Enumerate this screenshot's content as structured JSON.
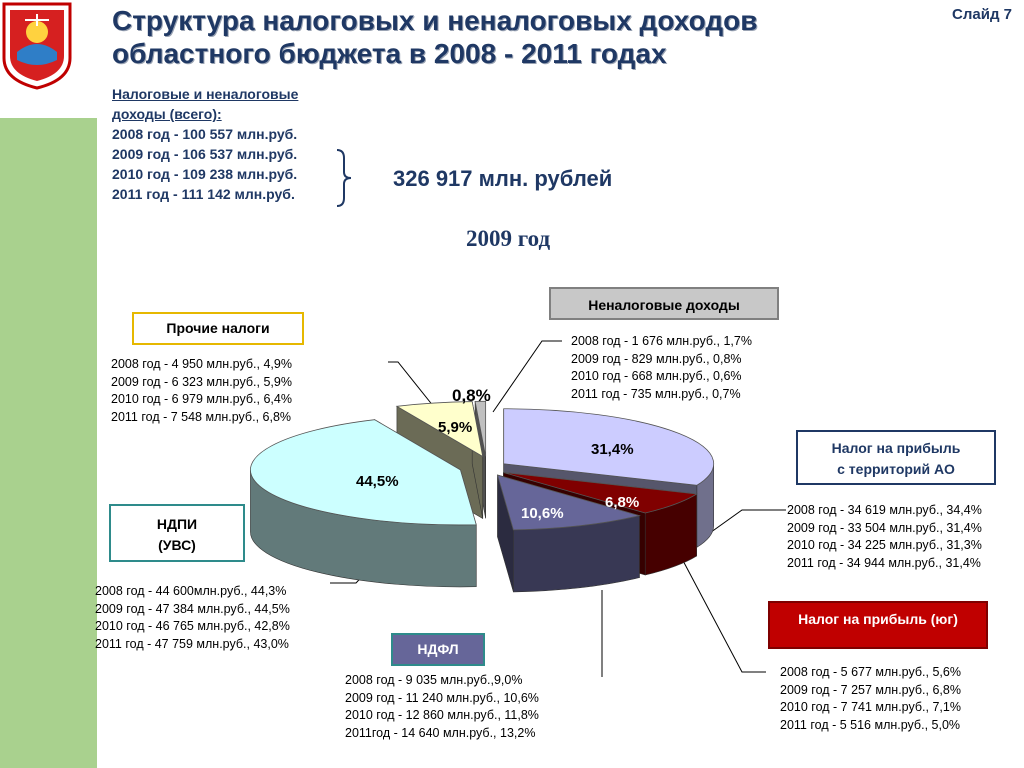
{
  "header": {
    "title_line1": "Структура налоговых и неналоговых доходов",
    "title_line2": "областного бюджета в 2008 - 2011 годах",
    "slide_number": "Слайд 7"
  },
  "totals": {
    "heading_line1": "Налоговые и неналоговые",
    "heading_line2": "доходы (всего):",
    "lines": [
      "2008 год - 100 557 млн.руб.",
      "2009 год - 106 537 млн.руб.",
      "2010 год - 109 238 млн.руб.",
      "2011 год - 111 142 млн.руб."
    ],
    "sum": "326 917 млн. рублей"
  },
  "chart_title": "2009 год",
  "colors": {
    "title": "#1f3864",
    "green_band": "#a9d18e",
    "ndpi": "#ccffff",
    "profit_ao": "#ccccff",
    "profit_south": "#800000",
    "ndfl": "#666699",
    "other_taxes": "#ffffcc",
    "non_tax": "#c0c0c0"
  },
  "chart_data": {
    "type": "pie",
    "title": "2009 год",
    "slices": [
      {
        "key": "profit_ao",
        "label": "31,4%",
        "value": 31.4
      },
      {
        "key": "profit_south",
        "label": "6,8%",
        "value": 6.8
      },
      {
        "key": "ndfl",
        "label": "10,6%",
        "value": 10.6
      },
      {
        "key": "ndpi",
        "label": "44,5%",
        "value": 44.5
      },
      {
        "key": "other_taxes",
        "label": "5,9%",
        "value": 5.9
      },
      {
        "key": "non_tax",
        "label": "0,8%",
        "value": 0.8
      }
    ]
  },
  "categories": {
    "non_tax": {
      "name": "Неналоговые доходы",
      "stats": [
        "2008 год - 1 676 млн.руб., 1,7%",
        "2009 год - 829 млн.руб., 0,8%",
        "2010 год - 668 млн.руб., 0,6%",
        "2011 год - 735 млн.руб., 0,7%"
      ]
    },
    "other_taxes": {
      "name": "Прочие налоги",
      "stats": [
        "2008 год - 4 950 млн.руб., 4,9%",
        "2009 год - 6 323 млн.руб., 5,9%",
        "2010 год -  6 979 млн.руб., 6,4%",
        "2011 год -  7 548 млн.руб., 6,8%"
      ]
    },
    "profit_ao": {
      "name_line1": "Налог на прибыль",
      "name_line2": "с территорий АО",
      "stats": [
        "2008 год - 34 619 млн.руб., 34,4%",
        "2009 год - 33 504 млн.руб., 31,4%",
        "2010 год - 34 225 млн.руб., 31,3%",
        "2011 год - 34 944 млн.руб., 31,4%"
      ]
    },
    "ndpi": {
      "name_line1": "НДПИ",
      "name_line2": "(УВС)",
      "stats": [
        "2008 год - 44 600млн.руб., 44,3%",
        "2009 год - 47 384 млн.руб., 44,5%",
        "2010 год - 46 765 млн.руб., 42,8%",
        "2011 год -  47 759 млн.руб., 43,0%"
      ]
    },
    "profit_south": {
      "name": "Налог на прибыль (юг)",
      "stats": [
        "2008 год - 5 677 млн.руб., 5,6%",
        "2009 год - 7 257 млн.руб., 6,8%",
        "2010 год - 7 741 млн.руб., 7,1%",
        "2011 год - 5 516 млн.руб., 5,0%"
      ]
    },
    "ndfl": {
      "name": "НДФЛ",
      "stats": [
        "2008 год - 9 035 млн.руб.,9,0%",
        "2009 год - 11 240 млн.руб., 10,6%",
        "2010 год - 12 860 млн.руб., 11,8%",
        "2011год - 14 640 млн.руб., 13,2%"
      ]
    }
  }
}
